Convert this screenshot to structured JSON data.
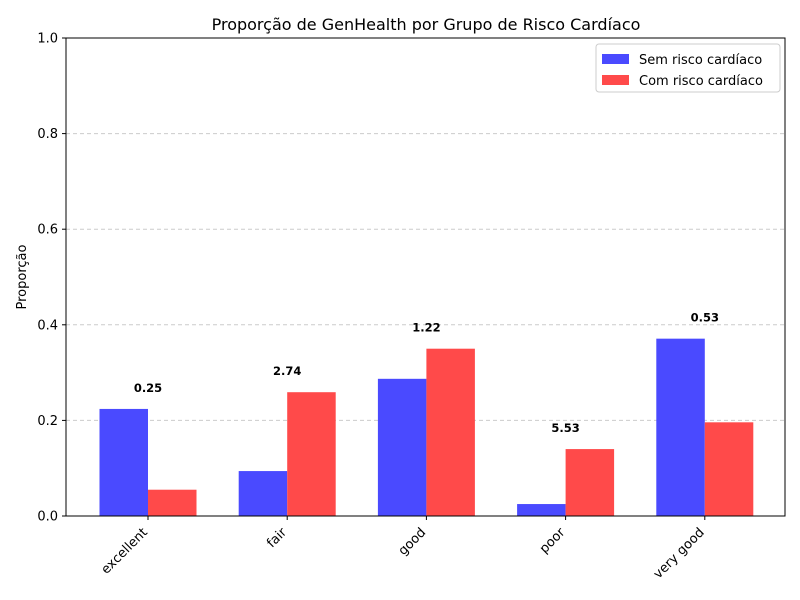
{
  "chart_data": {
    "type": "bar",
    "title": "Proporção de GenHealth por Grupo de Risco Cardíaco",
    "xlabel": "",
    "ylabel": "Proporção",
    "ylim": [
      0,
      1.0
    ],
    "yticks": [
      "0.0",
      "0.2",
      "0.4",
      "0.6",
      "0.8",
      "1.0"
    ],
    "grid": "y-dashed",
    "legend_position": "top-right",
    "categories": [
      "excellent",
      "fair",
      "good",
      "poor",
      "very good"
    ],
    "series": [
      {
        "name": "Sem risco cardíaco",
        "color": "#4a4aff",
        "values": [
          0.224,
          0.094,
          0.287,
          0.025,
          0.371
        ]
      },
      {
        "name": "Com risco cardíaco",
        "color": "#ff4a4a",
        "values": [
          0.055,
          0.259,
          0.35,
          0.14,
          0.196
        ]
      }
    ],
    "annotations": [
      "0.25",
      "2.74",
      "1.22",
      "5.53",
      "0.53"
    ]
  }
}
